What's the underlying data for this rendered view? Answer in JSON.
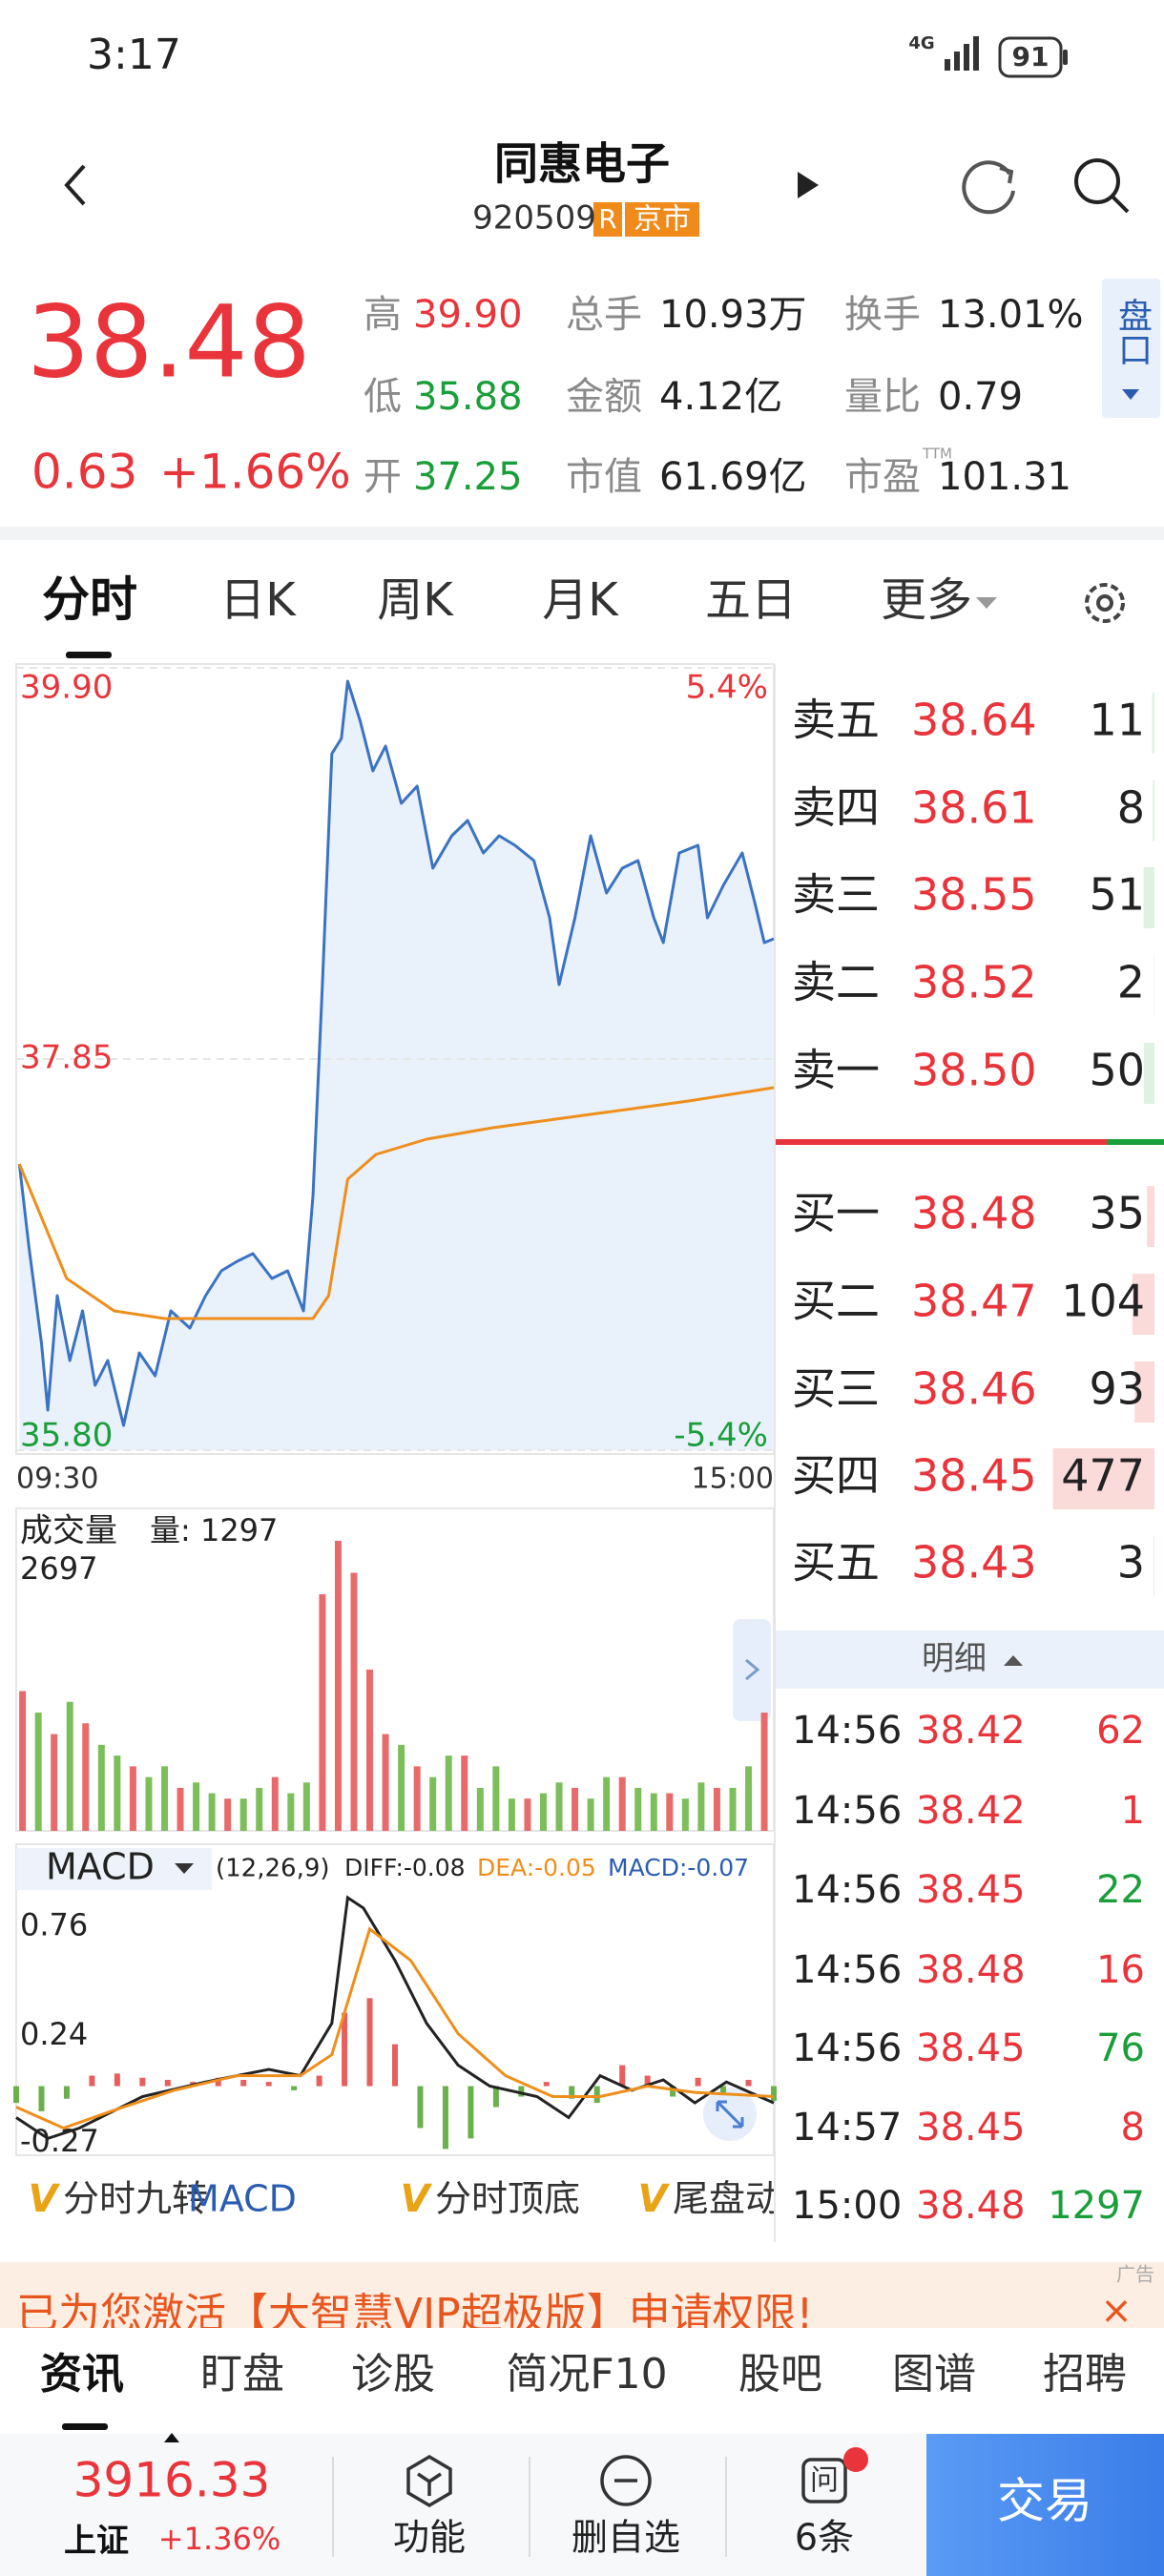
{
  "status_bar": {
    "time": "3:17",
    "network": "4G",
    "battery": "91"
  },
  "header": {
    "name": "同惠电子",
    "code": "920509",
    "badge_r": "R",
    "badge_market": "京市"
  },
  "quote": {
    "price": "38.48",
    "change": "0.63",
    "change_pct": "+1.66%",
    "panel_button": "盘口",
    "stats": [
      {
        "label": "高",
        "value": "39.90",
        "color": "#e8343a"
      },
      {
        "label": "总手",
        "value": "10.93万"
      },
      {
        "label": "换手",
        "value": "13.01%"
      },
      {
        "label": "低",
        "value": "35.88",
        "color": "#1a9e3a"
      },
      {
        "label": "金额",
        "value": "4.12亿"
      },
      {
        "label": "量比",
        "value": "0.79"
      },
      {
        "label": "开",
        "value": "37.25",
        "color": "#1a9e3a"
      },
      {
        "label": "市值",
        "value": "61.69亿"
      },
      {
        "label": "市盈",
        "value": "101.31",
        "sup": "TTM"
      }
    ]
  },
  "tabs": [
    "分时",
    "日K",
    "周K",
    "月K",
    "五日",
    "更多"
  ],
  "chart_data": [
    {
      "type": "line",
      "xlim": [
        0,
        240
      ],
      "xticks": [
        {
          "value": 0,
          "label": "09:30"
        },
        {
          "value": 240,
          "label": "15:00"
        }
      ],
      "ylim": [
        35.8,
        39.9
      ],
      "yticks": [
        {
          "value": 39.9,
          "label": "39.90"
        },
        37.85,
        {
          "value": 35.8,
          "label": "35.80"
        }
      ],
      "y2lim": [
        -5.4,
        5.4
      ],
      "y2ticks": [
        {
          "value": 5.4,
          "label": "5.4%"
        },
        {
          "value": -5.4,
          "label": "-5.4%"
        }
      ],
      "series": [
        {
          "color": "#3b73c2",
          "area_color": "#e9f1fb",
          "x": [
            1,
            4,
            8,
            10,
            13,
            17,
            21,
            25,
            29,
            34,
            39,
            44,
            49,
            55,
            60,
            65,
            70,
            75,
            81,
            86,
            91,
            94,
            97,
            100,
            103,
            105,
            109,
            113,
            117,
            122,
            127,
            132,
            138,
            143,
            148,
            153,
            158,
            164,
            169,
            172,
            177,
            182,
            187,
            192,
            197,
            202,
            205,
            210,
            216,
            219,
            224,
            230,
            234,
            237,
            240
          ],
          "values": [
            37.3,
            36.87,
            36.36,
            36.01,
            36.61,
            36.27,
            36.53,
            36.14,
            36.27,
            35.93,
            36.31,
            36.19,
            36.53,
            36.44,
            36.61,
            36.74,
            36.79,
            36.83,
            36.7,
            36.74,
            36.53,
            37.13,
            38.24,
            39.45,
            39.53,
            39.83,
            39.62,
            39.36,
            39.49,
            39.19,
            39.28,
            38.85,
            39.02,
            39.1,
            38.93,
            39.02,
            38.97,
            38.89,
            38.59,
            38.24,
            38.59,
            39.02,
            38.72,
            38.85,
            38.89,
            38.59,
            38.46,
            38.93,
            38.97,
            38.59,
            38.76,
            38.93,
            38.67,
            38.46,
            38.48
          ]
        },
        {
          "color": "#ee8f1c",
          "x": [
            1,
            16,
            31,
            47,
            94,
            99,
            105,
            114,
            130,
            151,
            182,
            213,
            240
          ],
          "values": [
            37.3,
            36.7,
            36.53,
            36.49,
            36.49,
            36.61,
            37.22,
            37.35,
            37.43,
            37.49,
            37.56,
            37.63,
            37.7
          ]
        }
      ]
    },
    {
      "type": "bar",
      "title": "成交量",
      "label": "量: 1297",
      "xlim": [
        0,
        240
      ],
      "ylim": [
        0,
        2697
      ],
      "yticks": [
        2697
      ],
      "series": [
        {
          "color": "#e86a6a",
          "x": [
            2,
            12,
            22,
            37,
            52,
            67,
            82,
            97,
            102,
            107,
            112,
            117,
            127,
            142,
            162,
            177,
            192,
            207,
            222,
            237
          ],
          "values": [
            1300,
            900,
            1000,
            600,
            400,
            300,
            500,
            2200,
            2697,
            2400,
            1500,
            900,
            600,
            700,
            300,
            400,
            500,
            350,
            400,
            1100
          ]
        },
        {
          "color": "#7cbf5a",
          "x": [
            7,
            17,
            27,
            32,
            42,
            47,
            57,
            62,
            72,
            77,
            87,
            92,
            122,
            132,
            137,
            147,
            152,
            157,
            167,
            172,
            182,
            187,
            197,
            202,
            212,
            217,
            227,
            232
          ],
          "values": [
            1100,
            1200,
            800,
            700,
            500,
            600,
            450,
            350,
            300,
            400,
            350,
            450,
            800,
            500,
            700,
            400,
            600,
            300,
            350,
            450,
            300,
            500,
            400,
            350,
            300,
            450,
            400,
            600
          ]
        }
      ]
    },
    {
      "type": "macd",
      "title": "MACD",
      "params": "(12,26,9)",
      "legend": [
        {
          "text": "DIFF:-0.08",
          "color": "#222222"
        },
        {
          "text": "DEA:-0.05",
          "color": "#ee8f1c"
        },
        {
          "text": "MACD:-0.07",
          "color": "#2a5db0"
        }
      ],
      "xlim": [
        0,
        240
      ],
      "ylim": [
        -0.33,
        1.0
      ],
      "yticks": [
        0.76,
        0.24,
        -0.27
      ],
      "series": [
        {
          "style": "bar",
          "up_color": "#e85d5d",
          "down_color": "#6ab04c",
          "x": [
            0,
            8,
            16,
            24,
            32,
            40,
            48,
            56,
            64,
            72,
            80,
            88,
            96,
            104,
            112,
            120,
            128,
            136,
            144,
            152,
            160,
            168,
            176,
            184,
            192,
            200,
            208,
            216,
            224,
            232,
            240
          ],
          "values": [
            -0.08,
            -0.12,
            -0.06,
            0.05,
            0.06,
            0.04,
            0.03,
            0.02,
            0.04,
            0.03,
            0.02,
            -0.02,
            0.05,
            0.35,
            0.42,
            0.2,
            -0.2,
            -0.3,
            -0.25,
            -0.1,
            -0.05,
            0.02,
            -0.06,
            -0.08,
            0.1,
            0.05,
            -0.05,
            0.04,
            -0.04,
            0.03,
            -0.07
          ]
        },
        {
          "style": "line",
          "color": "#222222",
          "x": [
            0,
            10,
            20,
            40,
            60,
            80,
            90,
            100,
            105,
            110,
            120,
            130,
            140,
            150,
            165,
            175,
            185,
            195,
            205,
            215,
            225,
            240
          ],
          "values": [
            -0.15,
            -0.25,
            -0.2,
            -0.05,
            0.02,
            0.08,
            0.05,
            0.3,
            0.9,
            0.85,
            0.6,
            0.3,
            0.1,
            0.0,
            -0.05,
            -0.15,
            0.05,
            -0.02,
            0.03,
            -0.08,
            0.02,
            -0.08
          ]
        },
        {
          "style": "line",
          "color": "#ee8f1c",
          "x": [
            0,
            15,
            30,
            50,
            70,
            90,
            100,
            112,
            125,
            140,
            155,
            170,
            185,
            200,
            215,
            240
          ],
          "values": [
            -0.1,
            -0.2,
            -0.12,
            -0.02,
            0.05,
            0.05,
            0.15,
            0.75,
            0.6,
            0.25,
            0.05,
            -0.05,
            -0.05,
            0.0,
            -0.03,
            -0.05
          ]
        }
      ]
    }
  ],
  "order_book": {
    "sell": [
      {
        "label": "卖五",
        "price": "38.64",
        "volume": "11"
      },
      {
        "label": "卖四",
        "price": "38.61",
        "volume": "8"
      },
      {
        "label": "卖三",
        "price": "38.55",
        "volume": "51"
      },
      {
        "label": "卖二",
        "price": "38.52",
        "volume": "2"
      },
      {
        "label": "卖一",
        "price": "38.50",
        "volume": "50"
      }
    ],
    "buy": [
      {
        "label": "买一",
        "price": "38.48",
        "volume": "35"
      },
      {
        "label": "买二",
        "price": "38.47",
        "volume": "104"
      },
      {
        "label": "买三",
        "price": "38.46",
        "volume": "93"
      },
      {
        "label": "买四",
        "price": "38.45",
        "volume": "477"
      },
      {
        "label": "买五",
        "price": "38.43",
        "volume": "3"
      }
    ]
  },
  "detail": {
    "title": "明细",
    "rows": [
      {
        "time": "14:56",
        "price": "38.42",
        "volume": "62",
        "color": "#e8343a"
      },
      {
        "time": "14:56",
        "price": "38.42",
        "volume": "1",
        "color": "#e8343a"
      },
      {
        "time": "14:56",
        "price": "38.45",
        "volume": "22",
        "color": "#1a9e3a"
      },
      {
        "time": "14:56",
        "price": "38.48",
        "volume": "16",
        "color": "#e8343a"
      },
      {
        "time": "14:56",
        "price": "38.45",
        "volume": "76",
        "color": "#1a9e3a"
      },
      {
        "time": "14:57",
        "price": "38.45",
        "volume": "8",
        "color": "#e8343a"
      },
      {
        "time": "15:00",
        "price": "38.48",
        "volume": "1297",
        "color": "#1a9e3a"
      }
    ]
  },
  "indicator_tabs": [
    {
      "icon": "V",
      "label": "分时九转"
    },
    {
      "label": "MACD"
    },
    {
      "icon": "V",
      "label": "分时顶底"
    },
    {
      "icon": "V",
      "label": "尾盘动"
    }
  ],
  "ad": {
    "text": "已为您激活【大智慧VIP超极版】申请权限!",
    "tag": "广告",
    "close": "×"
  },
  "bottom_tabs": [
    "资讯",
    "盯盘",
    "诊股",
    "简况F10",
    "股吧",
    "图谱",
    "招聘"
  ],
  "footer": {
    "index_value": "3916.33",
    "index_name": "上证",
    "index_change": "+1.36%",
    "actions": [
      "功能",
      "删自选",
      "6条"
    ],
    "badge_icon": "问",
    "trade": "交易"
  }
}
